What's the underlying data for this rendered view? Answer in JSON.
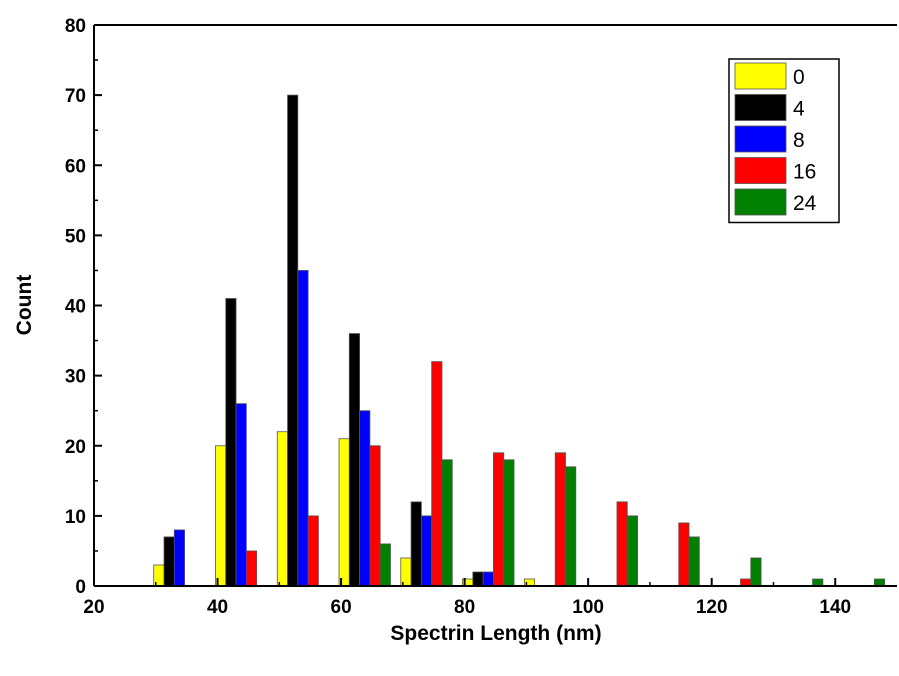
{
  "chart_data": {
    "type": "bar",
    "title": "",
    "xlabel": "Spectrin Length (nm)",
    "ylabel": "Count",
    "xlim": [
      20,
      150
    ],
    "ylim": [
      0,
      80
    ],
    "xticks": [
      "20",
      "40",
      "60",
      "80",
      "100",
      "120",
      "140"
    ],
    "yticks": [
      "0",
      "10",
      "20",
      "30",
      "40",
      "50",
      "60",
      "70",
      "80"
    ],
    "legend_position": "top-right",
    "bin_width": 10,
    "series": [
      {
        "name": "0",
        "color": "#ffff00",
        "x": [
          30,
          40,
          50,
          60,
          70,
          80,
          90
        ],
        "values": [
          3,
          20,
          22,
          21,
          4,
          1,
          1
        ]
      },
      {
        "name": "4",
        "color": "#000000",
        "x": [
          30,
          40,
          50,
          60,
          70,
          80
        ],
        "values": [
          7,
          41,
          70,
          36,
          12,
          2
        ]
      },
      {
        "name": "8",
        "color": "#0000ff",
        "x": [
          30,
          40,
          50,
          60,
          70,
          80
        ],
        "values": [
          8,
          26,
          45,
          25,
          10,
          2
        ]
      },
      {
        "name": "16",
        "color": "#ff0000",
        "x": [
          40,
          50,
          60,
          70,
          80,
          90,
          100,
          110,
          120
        ],
        "values": [
          5,
          10,
          20,
          32,
          19,
          19,
          12,
          9,
          1
        ]
      },
      {
        "name": "24",
        "color": "#008000",
        "x": [
          60,
          70,
          80,
          90,
          100,
          110,
          120,
          130,
          140
        ],
        "values": [
          6,
          18,
          18,
          17,
          10,
          7,
          4,
          1,
          1
        ]
      }
    ]
  }
}
